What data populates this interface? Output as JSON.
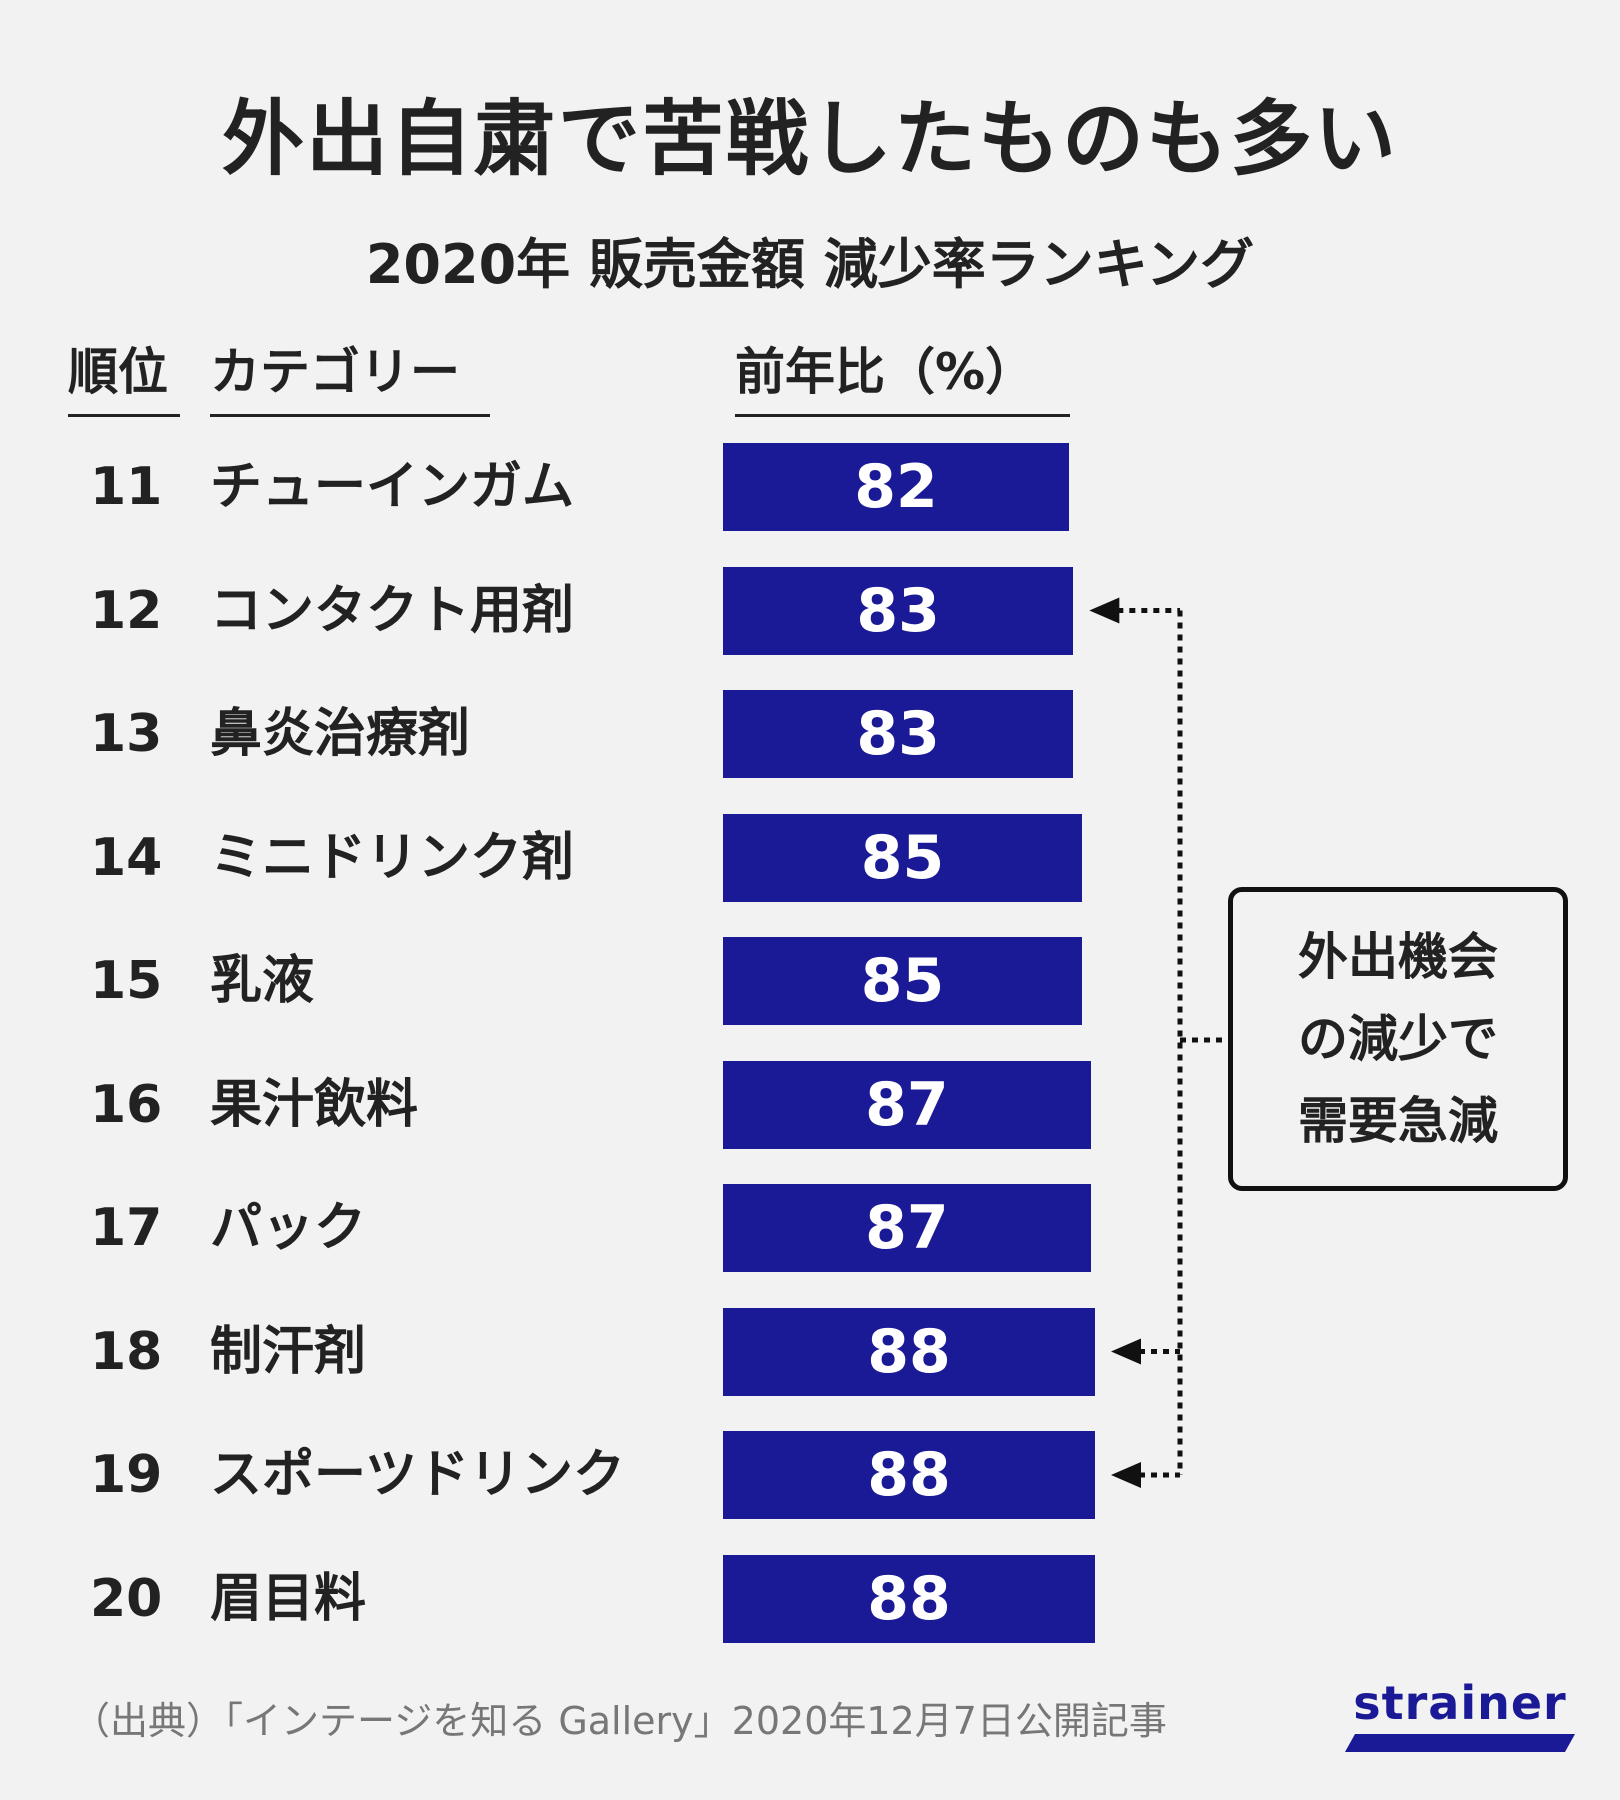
{
  "title": "外出自粛で苦戦したものも多い",
  "subtitle": "2020年 販売金額 減少率ランキング",
  "headers": {
    "rank": "順位",
    "category": "カテゴリー",
    "value": "前年比（%）"
  },
  "chart_data": {
    "type": "bar",
    "orientation": "horizontal",
    "title": "外出自粛で苦戦したものも多い",
    "subtitle": "2020年 販売金額 減少率ランキング",
    "ranks": [
      "11",
      "12",
      "13",
      "14",
      "15",
      "16",
      "17",
      "18",
      "19",
      "20"
    ],
    "categories": [
      "チューインガム",
      "コンタクト用剤",
      "鼻炎治療剤",
      "ミニドリンク剤",
      "乳液",
      "果汁飲料",
      "パック",
      "制汗剤",
      "スポーツドリンク",
      "眉目料"
    ],
    "values": [
      82,
      83,
      83,
      85,
      85,
      87,
      87,
      88,
      88,
      88
    ],
    "value_label": "前年比（%）",
    "bar_color": "#1a1a96",
    "highlighted_ranks": [
      "12",
      "18",
      "19"
    ]
  },
  "annotation": {
    "lines": [
      "外出機会",
      "の減少で",
      "需要急減"
    ]
  },
  "source": "（出典）「インテージを知る Gallery」2020年12月7日公開記事",
  "logo": {
    "text": "strainer",
    "color": "#1a1a96"
  }
}
